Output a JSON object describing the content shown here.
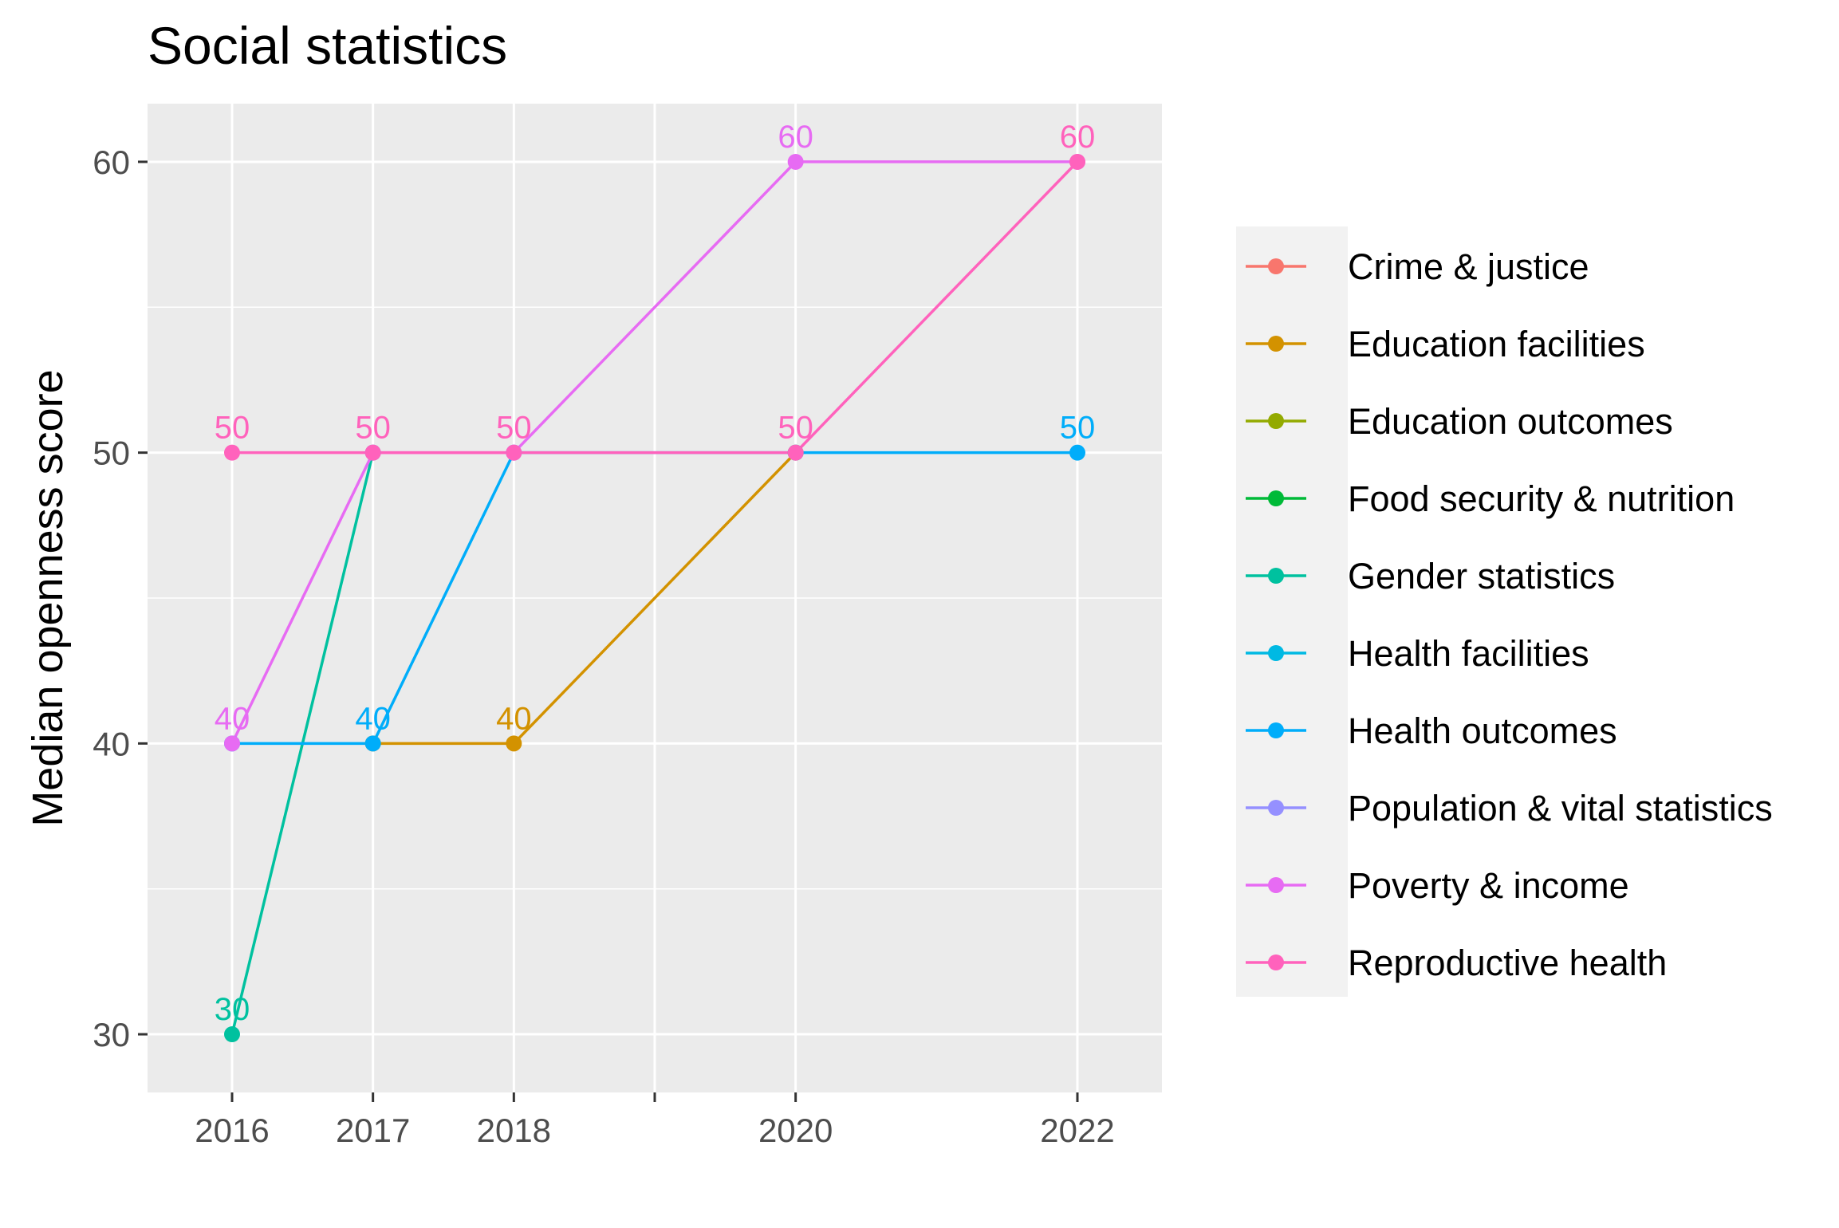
{
  "chart_data": {
    "type": "line",
    "title": "Social statistics",
    "xlabel": "",
    "ylabel": "Median openness score",
    "x_ticks": [
      2016,
      2017,
      2018,
      2020,
      2022
    ],
    "xlim": [
      2015.4,
      2022.6
    ],
    "ylim": [
      28,
      62
    ],
    "y_ticks": [
      30,
      40,
      50,
      60
    ],
    "grid": true,
    "legend_position": "right",
    "series": [
      {
        "name": "Crime & justice",
        "color": "#F8766D",
        "points": []
      },
      {
        "name": "Education facilities",
        "color": "#D39200",
        "points": [
          [
            2017,
            40
          ],
          [
            2018,
            40
          ],
          [
            2020,
            50
          ]
        ]
      },
      {
        "name": "Education outcomes",
        "color": "#93AA00",
        "points": []
      },
      {
        "name": "Food security & nutrition",
        "color": "#00BA38",
        "points": []
      },
      {
        "name": "Gender statistics",
        "color": "#00C19F",
        "points": [
          [
            2016,
            30
          ],
          [
            2017,
            50
          ]
        ]
      },
      {
        "name": "Health facilities",
        "color": "#00B9E3",
        "points": []
      },
      {
        "name": "Health outcomes",
        "color": "#00ADFA",
        "points": [
          [
            2016,
            40
          ],
          [
            2017,
            40
          ],
          [
            2018,
            50
          ],
          [
            2020,
            50
          ],
          [
            2022,
            50
          ]
        ]
      },
      {
        "name": "Population & vital statistics",
        "color": "#9590FF",
        "points": []
      },
      {
        "name": "Poverty & income",
        "color": "#E76BF3",
        "points": [
          [
            2016,
            40
          ],
          [
            2017,
            50
          ],
          [
            2018,
            50
          ],
          [
            2020,
            60
          ],
          [
            2022,
            60
          ]
        ]
      },
      {
        "name": "Reproductive health",
        "color": "#FF62BC",
        "points": [
          [
            2016,
            50
          ],
          [
            2017,
            50
          ],
          [
            2018,
            50
          ],
          [
            2020,
            50
          ],
          [
            2022,
            60
          ]
        ]
      }
    ],
    "data_labels": [
      {
        "x": 2016,
        "y": 30,
        "text": "30",
        "color": "#00C19F"
      },
      {
        "x": 2016,
        "y": 40,
        "text": "40",
        "color": "#E76BF3"
      },
      {
        "x": 2016,
        "y": 50,
        "text": "50",
        "color": "#FF62BC"
      },
      {
        "x": 2017,
        "y": 40,
        "text": "40",
        "color": "#00ADFA"
      },
      {
        "x": 2017,
        "y": 50,
        "text": "50",
        "color": "#FF62BC"
      },
      {
        "x": 2018,
        "y": 40,
        "text": "40",
        "color": "#D39200"
      },
      {
        "x": 2018,
        "y": 50,
        "text": "50",
        "color": "#FF62BC"
      },
      {
        "x": 2020,
        "y": 50,
        "text": "50",
        "color": "#FF62BC"
      },
      {
        "x": 2020,
        "y": 60,
        "text": "60",
        "color": "#E76BF3"
      },
      {
        "x": 2022,
        "y": 50,
        "text": "50",
        "color": "#00ADFA"
      },
      {
        "x": 2022,
        "y": 60,
        "text": "60",
        "color": "#FF62BC"
      }
    ],
    "colors": {
      "panel_background": "#EBEBEB",
      "grid": "#FFFFFF",
      "legend_background": "#F2F2F2"
    }
  }
}
